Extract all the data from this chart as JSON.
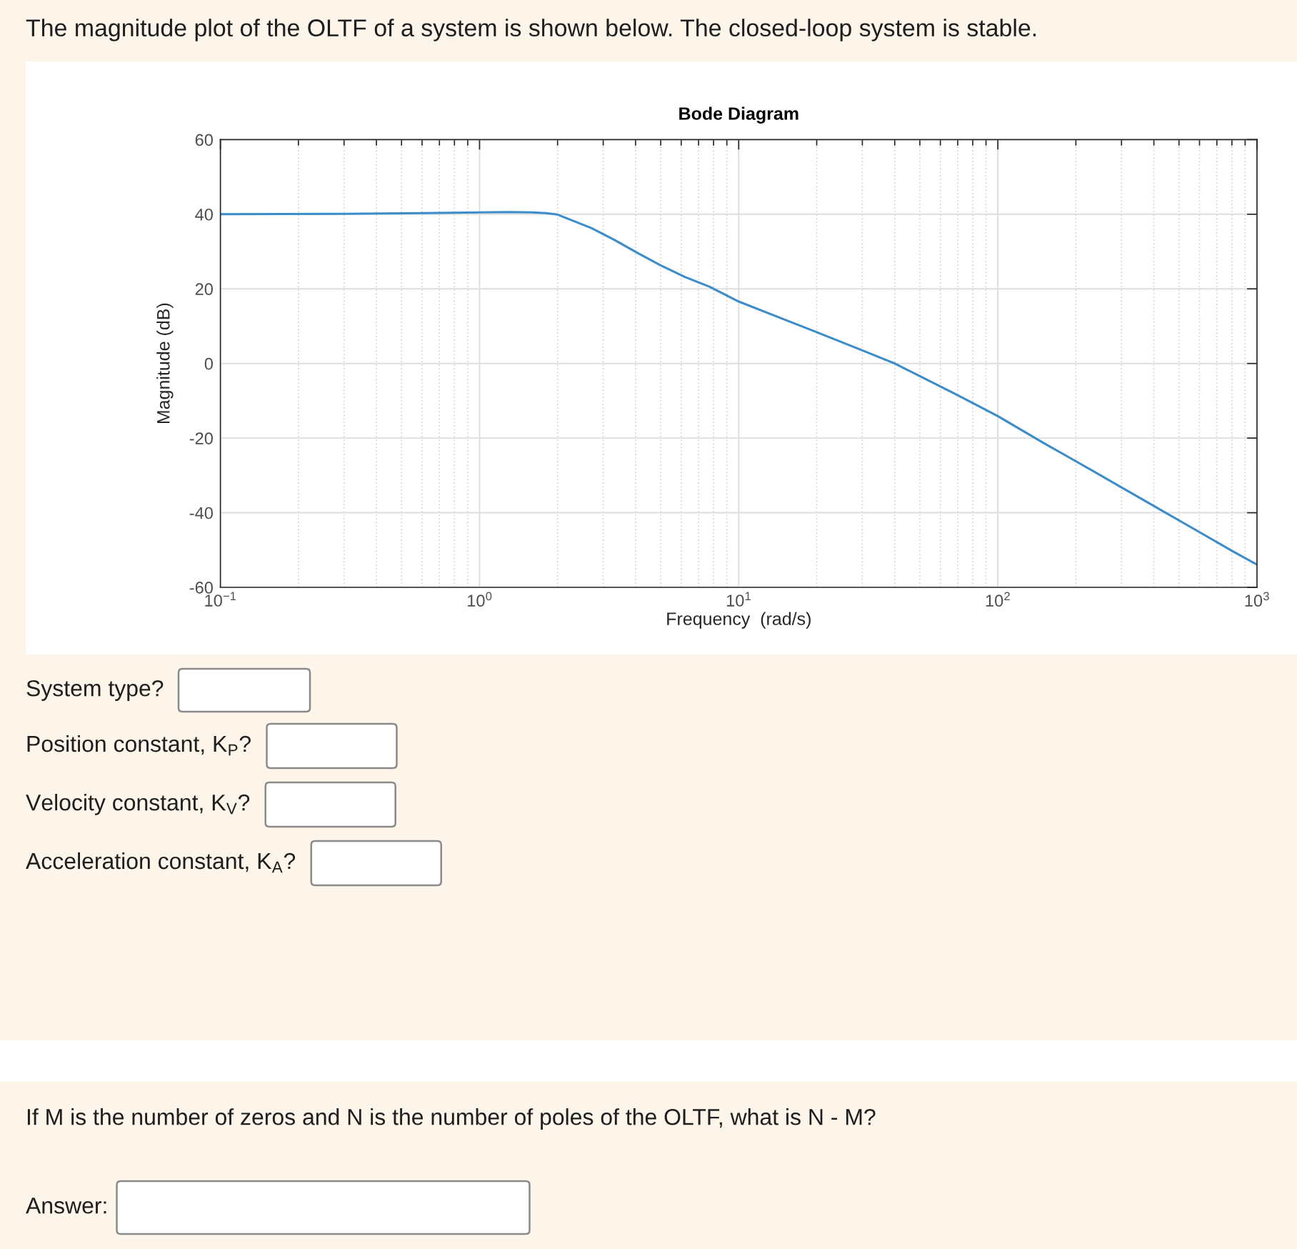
{
  "chart_data": {
    "type": "line",
    "title": "Bode Diagram",
    "xlabel": "Frequency  (rad/s)",
    "ylabel": "Magnitude (dB)",
    "x": [
      0.1,
      0.3,
      0.6,
      1.0,
      1.3,
      1.6,
      1.8,
      2.0,
      2.7,
      3.3,
      4.1,
      5.0,
      6.2,
      7.7,
      10,
      15,
      20,
      30,
      40,
      50,
      70,
      100,
      150,
      200,
      300,
      400,
      600,
      800,
      1000
    ],
    "series": [
      {
        "color": "#3a8ccb",
        "values": [
          40.0,
          40.1,
          40.3,
          40.5,
          40.6,
          40.5,
          40.3,
          39.9,
          36.3,
          33.2,
          29.5,
          26.3,
          23.2,
          20.6,
          16.6,
          11.8,
          8.4,
          3.5,
          0,
          -3.4,
          -8.5,
          -14.1,
          -21.3,
          -26.2,
          -33.2,
          -38.2,
          -45.2,
          -50.2,
          -53.9
        ]
      }
    ],
    "log": "x",
    "xlim": [
      0.1,
      1000
    ],
    "ylim": [
      -60,
      60
    ],
    "xticks": [
      {
        "value": 0.1,
        "label": "10$^{−1}$"
      },
      {
        "value": 1,
        "label": "10$^{0}$"
      },
      {
        "value": 10,
        "label": "10$^{1}$"
      },
      {
        "value": 100,
        "label": "10$^{2}$"
      },
      {
        "value": 1000,
        "label": "10$^{3}$"
      }
    ],
    "yticks": [
      -60,
      -40,
      -20,
      0,
      20,
      40,
      60
    ],
    "grid": true,
    "annotations": [
      "The magnitude plot of the OLTF of a system is shown below. The closed-loop system is stable.",
      "System type?",
      "Position constant, K$_{P}$?",
      "Velocity constant, K$_{V}$?",
      "Acceleration constant, K$_{A}$?",
      "If M is the number of zeros and N is the number of poles of the OLTF, what is N - M?",
      "Answer:"
    ]
  }
}
